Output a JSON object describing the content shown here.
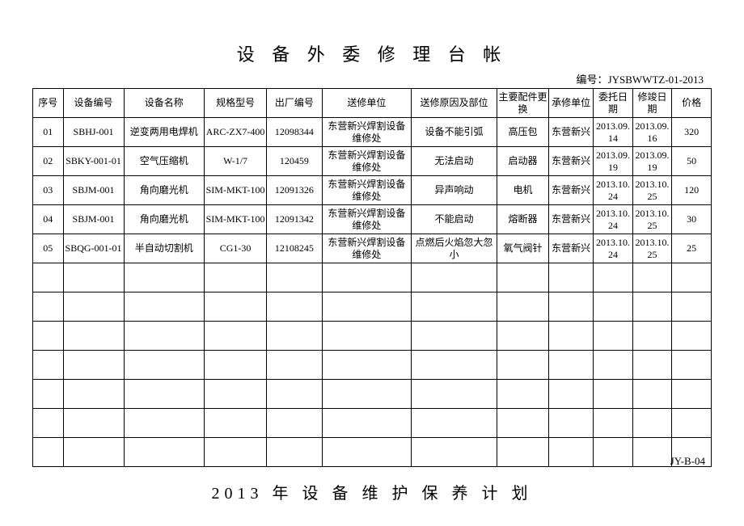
{
  "title": "设 备 外 委 修 理 台 帐",
  "docno_label": "编号：",
  "docno": "JYSBWWTZ-01-2013",
  "columns": [
    "序号",
    "设备编号",
    "设备名称",
    "规格型号",
    "出厂编号",
    "送修单位",
    "送修原因及部位",
    "主要配件更换",
    "承修单位",
    "委托日期",
    "修竣日期",
    "价格"
  ],
  "rows": [
    [
      "01",
      "SBHJ-001",
      "逆变两用电焊机",
      "ARC-ZX7-400",
      "12098344",
      "东营新兴焊割设备维修处",
      "设备不能引弧",
      "高压包",
      "东营新兴",
      "2013.09.14",
      "2013.09.16",
      "320"
    ],
    [
      "02",
      "SBKY-001-01",
      "空气压缩机",
      "W-1/7",
      "120459",
      "东营新兴焊割设备维修处",
      "无法启动",
      "启动器",
      "东营新兴",
      "2013.09.19",
      "2013.09.19",
      "50"
    ],
    [
      "03",
      "SBJM-001",
      "角向磨光机",
      "SIM-MKT-100",
      "12091326",
      "东营新兴焊割设备维修处",
      "异声响动",
      "电机",
      "东营新兴",
      "2013.10.24",
      "2013.10.25",
      "120"
    ],
    [
      "04",
      "SBJM-001",
      "角向磨光机",
      "SIM-MKT-100",
      "12091342",
      "东营新兴焊割设备维修处",
      "不能启动",
      "熔断器",
      "东营新兴",
      "2013.10.24",
      "2013.10.25",
      "30"
    ],
    [
      "05",
      "SBQG-001-01",
      "半自动切割机",
      "CG1-30",
      "12108245",
      "东营新兴焊割设备维修处",
      "点燃后火焰忽大忽小",
      "氧气阀针",
      "东营新兴",
      "2013.10.24",
      "2013.10.25",
      "25"
    ]
  ],
  "empty_rows": 7,
  "footer_code": "JY-B-04",
  "subtitle": "2013 年 设 备 维 护 保 养 计 划"
}
